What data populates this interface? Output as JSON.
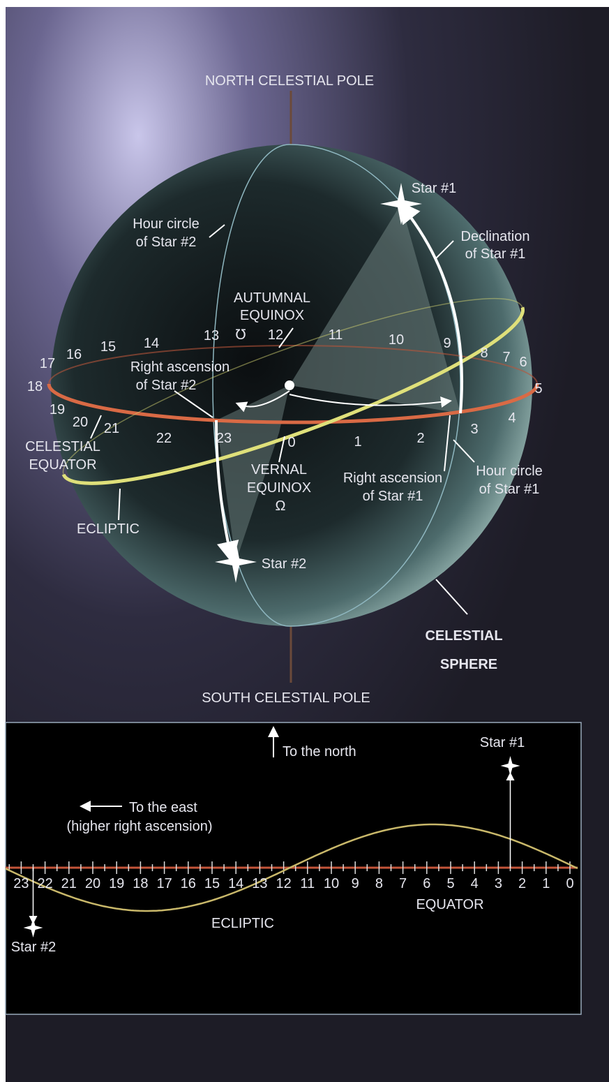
{
  "sphere": {
    "north_pole": "NORTH CELESTIAL POLE",
    "south_pole": "SOUTH CELESTIAL POLE",
    "title": [
      "CELESTIAL",
      "SPHERE"
    ],
    "hour_circle_star2": [
      "Hour circle",
      "of Star #2"
    ],
    "star1": "Star #1",
    "declination_star1": [
      "Declination",
      "of Star #1"
    ],
    "autumnal_equinox": [
      "AUTUMNAL",
      "EQUINOX",
      "℧"
    ],
    "right_ascension_star2": [
      "Right ascension",
      "of Star #2"
    ],
    "celestial_equator": [
      "CELESTIAL",
      "EQUATOR"
    ],
    "vernal_equinox": [
      "VERNAL",
      "EQUINOX",
      "Ω"
    ],
    "right_ascension_star1": [
      "Right ascension",
      "of Star #1"
    ],
    "hour_circle_star1": [
      "Hour circle",
      "of Star #1"
    ],
    "ecliptic": "ECLIPTIC",
    "star2": "Star #2",
    "hours": [
      0,
      1,
      2,
      3,
      4,
      5,
      6,
      7,
      8,
      9,
      10,
      11,
      12,
      13,
      14,
      15,
      16,
      17,
      18,
      19,
      20,
      21,
      22,
      23
    ]
  },
  "strip": {
    "to_north": "To the north",
    "to_east": "To the east",
    "to_east_note": "(higher right ascension)",
    "equator": "EQUATOR",
    "ecliptic": "ECLIPTIC",
    "star1": "Star #1",
    "star2": "Star #2",
    "hours": [
      23,
      22,
      21,
      20,
      19,
      18,
      17,
      16,
      15,
      14,
      13,
      12,
      11,
      10,
      9,
      8,
      7,
      6,
      5,
      4,
      3,
      2,
      1,
      0
    ]
  }
}
